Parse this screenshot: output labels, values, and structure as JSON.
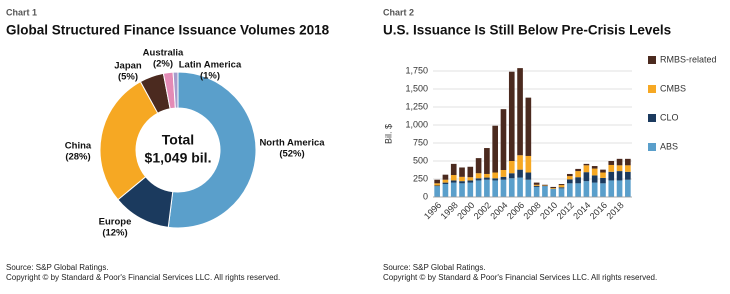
{
  "chart_data": [
    {
      "type": "donut",
      "label": "Chart 1",
      "title": "Global Structured Finance Issuance Volumes 2018",
      "categories": [
        "North America",
        "Europe",
        "China",
        "Japan",
        "Australia",
        "Latin America"
      ],
      "values": [
        52,
        12,
        28,
        5,
        2,
        1
      ],
      "value_labels": [
        "(52%)",
        "(12%)",
        "(28%)",
        "(5%)",
        "(2%)",
        "(1%)"
      ],
      "colors": [
        "#5a9fcb",
        "#1b3a5e",
        "#f6a823",
        "#4b2a1f",
        "#e48bb6",
        "#a79ccc"
      ],
      "center_text": [
        "Total",
        "$1,049 bil."
      ],
      "source": "Source: S&P Global Ratings.",
      "copyright": "Copyright © by Standard & Poor's Financial Services LLC. All rights reserved."
    },
    {
      "type": "stacked-bar",
      "label": "Chart 2",
      "title": "U.S. Issuance Is Still Below Pre-Crisis Levels",
      "y_label": "Bil. $",
      "categories": [
        "1996",
        null,
        "1998",
        null,
        "2000",
        null,
        "2002",
        null,
        "2004",
        null,
        "2006",
        null,
        "2008",
        null,
        "2010",
        null,
        "2012",
        null,
        "2014",
        null,
        "2016",
        null,
        "2018",
        null
      ],
      "series": [
        {
          "name": "ABS",
          "color": "#5a9fcb",
          "values": [
            150,
            180,
            200,
            190,
            200,
            230,
            240,
            230,
            240,
            260,
            270,
            240,
            140,
            150,
            110,
            120,
            190,
            190,
            220,
            200,
            190,
            230,
            230,
            240
          ]
        },
        {
          "name": "CLO",
          "color": "#1b3a5e",
          "values": [
            10,
            20,
            30,
            30,
            30,
            30,
            30,
            30,
            40,
            70,
            110,
            100,
            15,
            5,
            5,
            15,
            55,
            85,
            125,
            100,
            75,
            120,
            130,
            110
          ]
        },
        {
          "name": "CMBS",
          "color": "#f6a823",
          "values": [
            30,
            40,
            75,
            60,
            45,
            70,
            50,
            80,
            95,
            170,
            200,
            230,
            15,
            5,
            10,
            30,
            45,
            85,
            95,
            95,
            75,
            95,
            80,
            90
          ]
        },
        {
          "name": "RMBS-related",
          "color": "#4b2a1f",
          "values": [
            50,
            70,
            155,
            130,
            145,
            210,
            360,
            650,
            845,
            1240,
            1210,
            810,
            30,
            10,
            15,
            15,
            30,
            30,
            20,
            35,
            40,
            55,
            90,
            90
          ]
        }
      ],
      "ylim": [
        0,
        1750
      ],
      "yticks": [
        0,
        250,
        500,
        750,
        {
          "value": 1000,
          "label": "1,000"
        },
        {
          "value": 1250,
          "label": "1,250"
        },
        {
          "value": 1500,
          "label": "1,500"
        },
        {
          "value": 1750,
          "label": "1,750"
        }
      ],
      "grid": true,
      "source": "Source: S&P Global Ratings.",
      "copyright": "Copyright © by Standard & Poor's Financial Services LLC. All rights reserved."
    }
  ]
}
